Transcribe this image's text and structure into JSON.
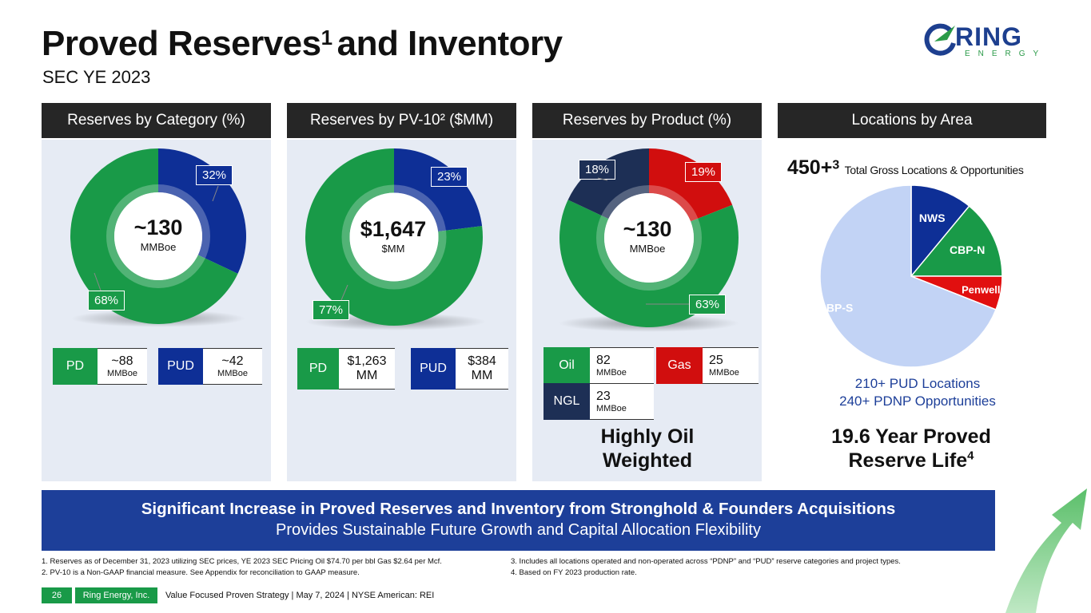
{
  "header": {
    "title": "Proved Reserves",
    "title_sup": "1",
    "title_rest": "and Inventory",
    "subtitle": "SEC YE 2023",
    "logo_ring": "RING",
    "logo_energy": "ENERGY"
  },
  "panels": {
    "category": {
      "header": "Reserves by Category (%)",
      "center_value": "~130",
      "center_unit": "MMBoe",
      "label_pud": "32%",
      "label_pd": "68%",
      "legend": [
        {
          "name": "PD",
          "value": "~88",
          "unit": "MMBoe"
        },
        {
          "name": "PUD",
          "value": "~42",
          "unit": "MMBoe"
        }
      ]
    },
    "pv10": {
      "header": "Reserves by PV-10² ($MM)",
      "center_value": "$1,647",
      "center_unit": "$MM",
      "label_pud": "23%",
      "label_pd": "77%",
      "legend": [
        {
          "name": "PD",
          "value": "$1,263",
          "unit": "MM"
        },
        {
          "name": "PUD",
          "value": "$384",
          "unit": "MM"
        }
      ]
    },
    "product": {
      "header": "Reserves by Product (%)",
      "center_value": "~130",
      "center_unit": "MMBoe",
      "label_ngl": "18%",
      "label_gas": "19%",
      "label_oil": "63%",
      "legend": [
        {
          "name": "Oil",
          "value": "82",
          "unit": "MMBoe"
        },
        {
          "name": "Gas",
          "value": "25",
          "unit": "MMBoe"
        },
        {
          "name": "NGL",
          "value": "23",
          "unit": "MMBoe"
        }
      ],
      "note_line1": "Highly Oil",
      "note_line2": "Weighted"
    },
    "locations": {
      "header": "Locations by Area",
      "total": "450+",
      "total_sup": "3",
      "total_label": "Total Gross Locations & Opportunities",
      "pud_locations": "210+ PUD Locations",
      "pdnp_opps": "240+ PDNP Opportunities",
      "reserve_life_line1": "19.6 Year Proved",
      "reserve_life_line2": "Reserve Life",
      "reserve_life_sup": "4"
    }
  },
  "chart_data": [
    {
      "type": "pie",
      "title": "Reserves by Category (%)",
      "donut": true,
      "categories": [
        "PUD",
        "PD"
      ],
      "values": [
        32,
        68
      ],
      "colors": [
        "#0e2f96",
        "#199a48"
      ]
    },
    {
      "type": "pie",
      "title": "Reserves by PV-10 ($MM)",
      "donut": true,
      "categories": [
        "PUD",
        "PD"
      ],
      "values": [
        23,
        77
      ],
      "colors": [
        "#0e2f96",
        "#199a48"
      ]
    },
    {
      "type": "pie",
      "title": "Reserves by Product (%)",
      "donut": true,
      "categories": [
        "Gas",
        "Oil",
        "NGL"
      ],
      "values": [
        19,
        63,
        18
      ],
      "colors": [
        "#d10e0e",
        "#199a48",
        "#1d2f55"
      ]
    },
    {
      "type": "pie",
      "title": "Locations by Area",
      "donut": false,
      "categories": [
        "NWS",
        "CBP-N",
        "Penwell",
        "CBP-S"
      ],
      "values": [
        11,
        14,
        6,
        69
      ],
      "colors": [
        "#0e2f96",
        "#199a48",
        "#e10f0f",
        "#c2d3f5"
      ]
    }
  ],
  "banner": {
    "line1": "Significant Increase in Proved Reserves and Inventory from Stronghold & Founders Acquisitions",
    "line2": "Provides Sustainable Future Growth and Capital Allocation Flexibility"
  },
  "footnotes": {
    "f1": "1.   Reserves as of December 31, 2023 utilizing SEC prices, YE 2023 SEC Pricing Oil $74.70 per bbl Gas $2.64 per Mcf.",
    "f2": "2.   PV-10 is a Non-GAAP financial measure. See Appendix for reconciliation to GAAP measure.",
    "f3": "3.   Includes all locations operated and non-operated across “PDNP” and “PUD” reserve categories and project types.",
    "f4": "4.   Based on FY 2023 production rate."
  },
  "footer": {
    "page": "26",
    "company": "Ring Energy, Inc.",
    "text": "Value Focused Proven Strategy  | May 7, 2024 |  NYSE American: REI"
  }
}
